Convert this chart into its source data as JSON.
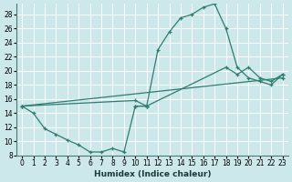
{
  "xlabel": "Humidex (Indice chaleur)",
  "bg_color": "#cce8ea",
  "grid_color": "#b8d8da",
  "line_color": "#2e7d6e",
  "xlim": [
    -0.5,
    23.5
  ],
  "ylim": [
    8,
    29.5
  ],
  "xticks": [
    0,
    1,
    2,
    3,
    4,
    5,
    6,
    7,
    8,
    9,
    10,
    11,
    12,
    13,
    14,
    15,
    16,
    17,
    18,
    19,
    20,
    21,
    22,
    23
  ],
  "yticks": [
    8,
    10,
    12,
    14,
    16,
    18,
    20,
    22,
    24,
    26,
    28
  ],
  "curve1_x": [
    0,
    1,
    2,
    3,
    4,
    5,
    6,
    7,
    8,
    9,
    10,
    11
  ],
  "curve1_y": [
    15,
    14.0,
    11.8,
    11.0,
    10.2,
    9.5,
    8.5,
    8.5,
    9.0,
    8.5,
    15.0,
    15.0
  ],
  "curve2_x": [
    10,
    11,
    12,
    13,
    14,
    15,
    16,
    17,
    18,
    19,
    20,
    21,
    22,
    23
  ],
  "curve2_y": [
    15.0,
    15.0,
    23.0,
    25.5,
    27.5,
    28.0,
    29.0,
    29.5,
    26.0,
    20.5,
    19.0,
    18.5,
    18.0,
    19.5
  ],
  "trend1_x": [
    0,
    10,
    11,
    18,
    19,
    20,
    21,
    22,
    23
  ],
  "trend1_y": [
    15,
    15.8,
    15.0,
    20.5,
    19.5,
    20.5,
    19.0,
    18.5,
    19.5
  ],
  "trend2_x": [
    0,
    23
  ],
  "trend2_y": [
    15.0,
    19.0
  ]
}
